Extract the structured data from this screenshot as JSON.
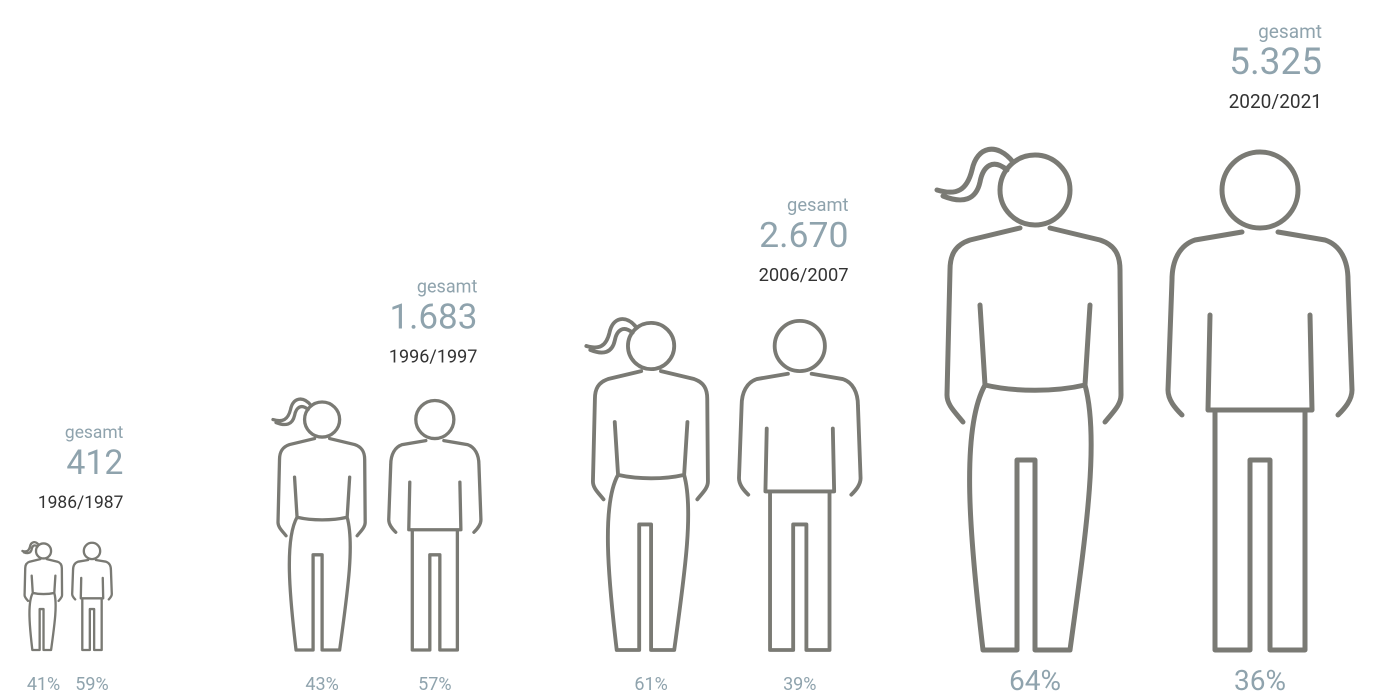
{
  "chart_data": {
    "type": "pictogram",
    "categories": [
      "1986/1987",
      "1996/1997",
      "2006/2007",
      "2020/2021"
    ],
    "total_label": "gesamt",
    "totals": [
      412,
      1683,
      2670,
      5325
    ],
    "total_labels": [
      "412",
      "1.683",
      "2.670",
      "5.325"
    ],
    "series": [
      {
        "name": null,
        "color": "#7a7a74",
        "values": [
          41,
          43,
          61,
          64
        ],
        "value_labels": [
          "41%",
          "43%",
          "61%",
          "64%"
        ]
      },
      {
        "name": null,
        "color": "#7a7a74",
        "values": [
          59,
          57,
          39,
          36
        ],
        "value_labels": [
          "59%",
          "57%",
          "39%",
          "36%"
        ]
      }
    ]
  }
}
